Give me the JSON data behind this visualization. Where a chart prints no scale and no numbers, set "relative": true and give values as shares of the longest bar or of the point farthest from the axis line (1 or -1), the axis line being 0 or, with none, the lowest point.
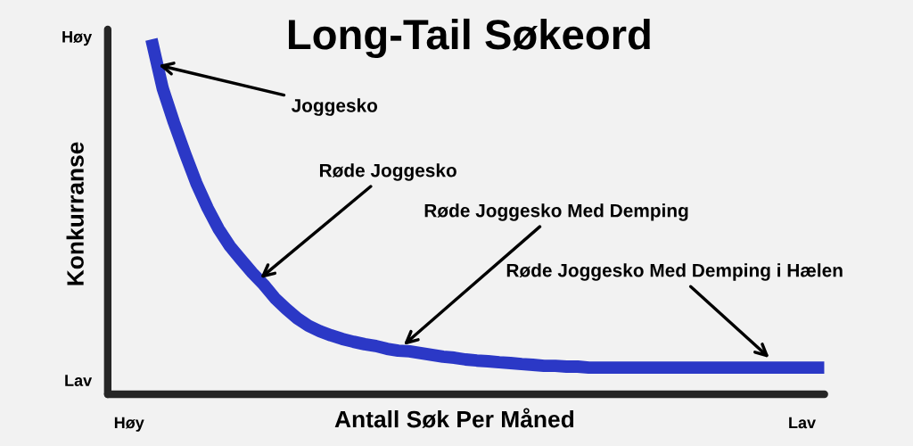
{
  "chart_data": {
    "type": "line",
    "title": "Long-Tail Søkeord",
    "xlabel": "Antall Søk Per Måned",
    "ylabel": "Konkurranse",
    "relative": true,
    "categories": [
      "Høy",
      null,
      null,
      null,
      null,
      null,
      null,
      null,
      null,
      null,
      null,
      null,
      null,
      null,
      null,
      null,
      null,
      null,
      null,
      null,
      null,
      null,
      null,
      null,
      null,
      null,
      null,
      null,
      null,
      null,
      null,
      null,
      null,
      null,
      null,
      null,
      null,
      null,
      null,
      null,
      null,
      null,
      null,
      null,
      null,
      null,
      null,
      null,
      null,
      null,
      null,
      null,
      null,
      null,
      null,
      null,
      null,
      null,
      null,
      null,
      "Lav",
      null,
      null
    ],
    "series": [
      {
        "color": "#2b38c6",
        "values": [
          null,
          null,
          1,
          0.862,
          0.766,
          0.678,
          0.595,
          0.525,
          0.465,
          0.417,
          0.379,
          0.342,
          0.309,
          0.271,
          0.241,
          0.214,
          0.193,
          0.178,
          0.166,
          0.156,
          0.148,
          0.141,
          0.136,
          0.128,
          0.123,
          0.121,
          0.116,
          0.111,
          0.106,
          0.103,
          0.098,
          0.095,
          0.093,
          0.09,
          0.088,
          0.085,
          0.083,
          0.08,
          0.08,
          0.078,
          0.078,
          0.075,
          0.075,
          0.075,
          0.075,
          0.075,
          0.075,
          0.075,
          0.075,
          0.075,
          0.075,
          0.075,
          0.075,
          0.075,
          0.075,
          0.075,
          0.075,
          0.075,
          0.075,
          0.075,
          0.075,
          0.075,
          0.075
        ]
      }
    ],
    "marker": "none",
    "line_style": "solid",
    "annotations": [
      "Joggesko",
      "Røde Joggesko",
      "Røde Joggesko Med Demping",
      "Røde Joggesko Med Demping i Hælen",
      "Høy",
      "Lav"
    ]
  }
}
